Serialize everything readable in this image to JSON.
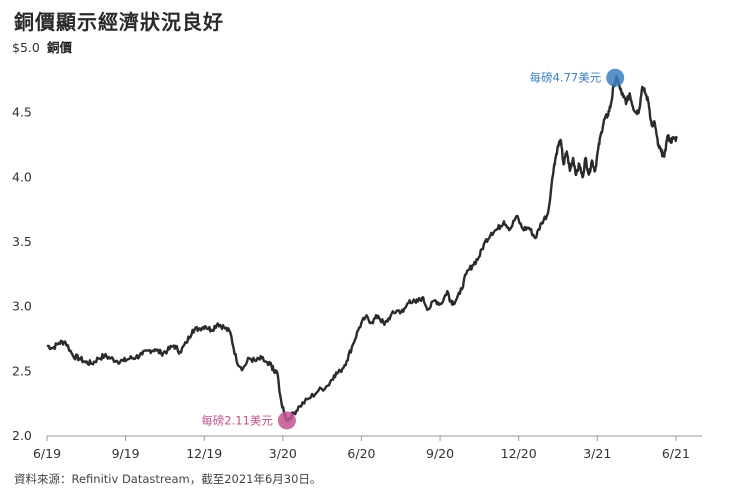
{
  "title": "銅價顯示經濟狀況良好",
  "source": "資料來源：Refinitiv Datastream，截至2021年6月30日。",
  "colors": {
    "line": "#2b2b2b",
    "high": "#3b7fbf",
    "low": "#c2558f",
    "axis": "#999999"
  },
  "chart_data": {
    "type": "line",
    "title": "銅價顯示經濟狀況良好",
    "ylabel": "銅價",
    "ylim": [
      2.0,
      5.0
    ],
    "yticks": [
      {
        "value": 5.0,
        "label": "$5.0"
      },
      {
        "value": 4.5,
        "label": "4.5"
      },
      {
        "value": 4.0,
        "label": "4.0"
      },
      {
        "value": 3.5,
        "label": "3.5"
      },
      {
        "value": 3.0,
        "label": "3.0"
      },
      {
        "value": 2.5,
        "label": "2.5"
      },
      {
        "value": 2.0,
        "label": "2.0"
      }
    ],
    "xlim": [
      2019.417,
      2021.5
    ],
    "xticks": [
      {
        "value": 2019.417,
        "label": "6/19"
      },
      {
        "value": 2019.667,
        "label": "9/19"
      },
      {
        "value": 2019.917,
        "label": "12/19"
      },
      {
        "value": 2020.167,
        "label": "3/20"
      },
      {
        "value": 2020.417,
        "label": "6/20"
      },
      {
        "value": 2020.667,
        "label": "9/20"
      },
      {
        "value": 2020.917,
        "label": "12/20"
      },
      {
        "value": 2021.167,
        "label": "3/21"
      },
      {
        "value": 2021.417,
        "label": "6/21"
      }
    ],
    "grid": false,
    "legend": "none",
    "series": [
      {
        "x": [
          2019.417,
          2019.435,
          2019.455,
          2019.475,
          2019.5,
          2019.52,
          2019.54,
          2019.56,
          2019.58,
          2019.6,
          2019.62,
          2019.64,
          2019.66,
          2019.68,
          2019.7,
          2019.72,
          2019.74,
          2019.76,
          2019.78,
          2019.8,
          2019.82,
          2019.84,
          2019.86,
          2019.88,
          2019.9,
          2019.92,
          2019.94,
          2019.96,
          2019.98,
          2020.0,
          2020.02,
          2020.04,
          2020.06,
          2020.08,
          2020.1,
          2020.12,
          2020.13,
          2020.14,
          2020.148,
          2020.165,
          2020.18,
          2020.2,
          2020.22,
          2020.25,
          2020.28,
          2020.31,
          2020.33,
          2020.35,
          2020.37,
          2020.39,
          2020.41,
          2020.43,
          2020.45,
          2020.47,
          2020.49,
          2020.51,
          2020.53,
          2020.55,
          2020.57,
          2020.59,
          2020.61,
          2020.63,
          2020.65,
          2020.67,
          2020.69,
          2020.7,
          2020.71,
          2020.73,
          2020.75,
          2020.77,
          2020.79,
          2020.81,
          2020.83,
          2020.85,
          2020.87,
          2020.89,
          2020.91,
          2020.93,
          2020.95,
          2020.97,
          2020.99,
          2021.01,
          2021.03,
          2021.04,
          2021.05,
          2021.06,
          2021.07,
          2021.08,
          2021.09,
          2021.1,
          2021.11,
          2021.12,
          2021.13,
          2021.14,
          2021.15,
          2021.16,
          2021.17,
          2021.18,
          2021.19,
          2021.2,
          2021.21,
          2021.22,
          2021.23,
          2021.24,
          2021.25,
          2021.26,
          2021.27,
          2021.28,
          2021.29,
          2021.3,
          2021.31,
          2021.32,
          2021.33,
          2021.34,
          2021.35,
          2021.36,
          2021.37,
          2021.38,
          2021.39,
          2021.4,
          2021.41,
          2021.42
        ],
        "y": [
          2.7,
          2.68,
          2.72,
          2.73,
          2.62,
          2.6,
          2.57,
          2.56,
          2.6,
          2.62,
          2.6,
          2.58,
          2.58,
          2.6,
          2.61,
          2.63,
          2.66,
          2.67,
          2.64,
          2.66,
          2.7,
          2.65,
          2.72,
          2.82,
          2.83,
          2.85,
          2.82,
          2.87,
          2.84,
          2.8,
          2.58,
          2.52,
          2.6,
          2.58,
          2.6,
          2.55,
          2.55,
          2.49,
          2.5,
          2.22,
          2.12,
          2.17,
          2.23,
          2.29,
          2.35,
          2.39,
          2.47,
          2.5,
          2.58,
          2.71,
          2.84,
          2.92,
          2.88,
          2.93,
          2.86,
          2.93,
          2.97,
          2.96,
          3.05,
          3.03,
          3.07,
          2.98,
          3.05,
          3.02,
          3.12,
          3.05,
          3.03,
          3.1,
          3.25,
          3.32,
          3.38,
          3.5,
          3.57,
          3.6,
          3.66,
          3.6,
          3.7,
          3.6,
          3.61,
          3.53,
          3.65,
          3.72,
          4.1,
          4.22,
          4.29,
          4.1,
          4.2,
          4.05,
          4.15,
          4.02,
          4.1,
          4.0,
          4.15,
          4.02,
          4.13,
          4.05,
          4.22,
          4.35,
          4.45,
          4.48,
          4.56,
          4.72,
          4.77,
          4.68,
          4.62,
          4.58,
          4.65,
          4.55,
          4.5,
          4.52,
          4.7,
          4.65,
          4.58,
          4.4,
          4.42,
          4.25,
          4.2,
          4.16,
          4.32,
          4.28,
          4.3,
          4.3
        ]
      }
    ],
    "annotations": [
      {
        "text": "每磅4.77美元",
        "x": 2021.224,
        "y": 4.77,
        "kind": "high"
      },
      {
        "text": "每磅2.11美元",
        "x": 2020.18,
        "y": 2.12,
        "kind": "low"
      }
    ]
  }
}
